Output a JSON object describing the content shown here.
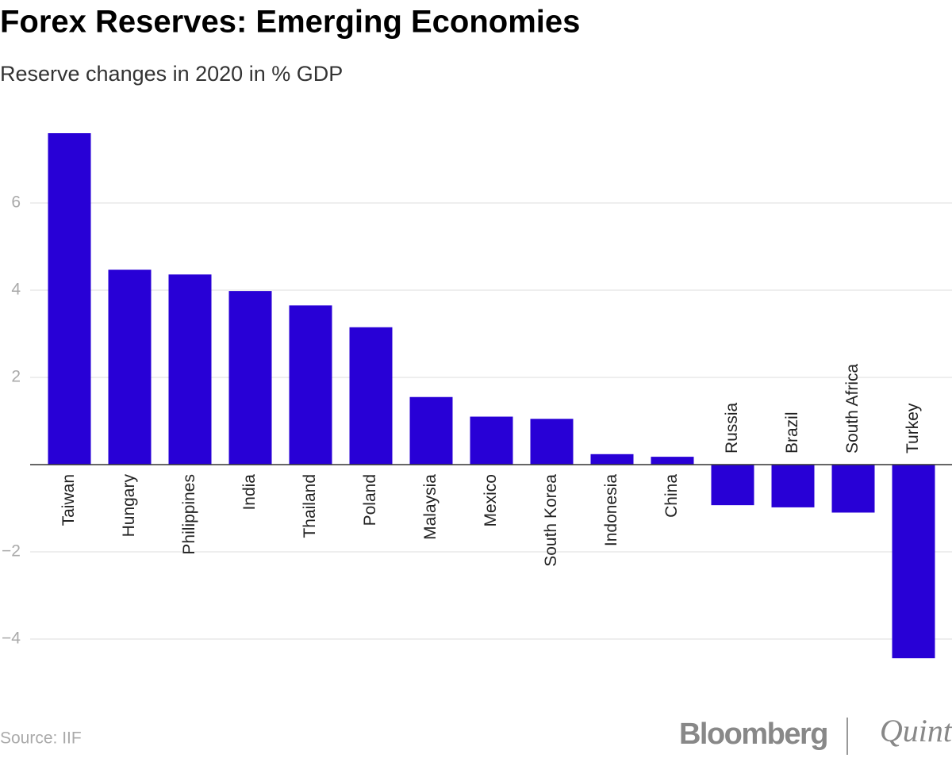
{
  "chart_data": {
    "type": "bar",
    "title": "Forex Reserves: Emerging Economies",
    "subtitle": "Reserve changes in 2020 in % GDP",
    "categories": [
      "Taiwan",
      "Hungary",
      "Philippines",
      "India",
      "Thailand",
      "Poland",
      "Malaysia",
      "Mexico",
      "South Korea",
      "Indonesia",
      "China",
      "Russia",
      "Brazil",
      "South Africa",
      "Turkey"
    ],
    "values": [
      7.6,
      4.47,
      4.36,
      3.98,
      3.65,
      3.15,
      1.55,
      1.1,
      1.05,
      0.24,
      0.18,
      -0.93,
      -0.98,
      -1.1,
      -4.44
    ],
    "color": "#2800d6",
    "ylim": [
      -5,
      8
    ],
    "yticks": [
      {
        "value": -4,
        "label": "−4"
      },
      {
        "value": -2,
        "label": "−2"
      },
      2,
      4,
      6
    ],
    "grid": true,
    "source": "Source: IIF",
    "logo": {
      "brand": "Bloomberg",
      "partner": "Quint"
    }
  }
}
